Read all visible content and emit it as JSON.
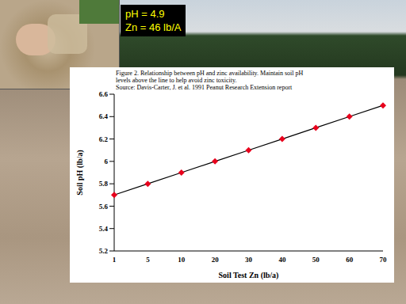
{
  "chart_data": {
    "type": "line",
    "title": "Figure 2. Relationship between pH and zinc availability.  Maintain soil pH\nlevels above the line to help avoid zinc toxicity.\nSource: Davis-Carter, J. et al. 1991 Peanut Research Extension report",
    "x_label": "Soil Test Zn (lb/a)",
    "y_label": "Soil pH (lb/a)",
    "categories": [
      "1",
      "5",
      "10",
      "20",
      "30",
      "40",
      "50",
      "60",
      "70"
    ],
    "values": [
      5.7,
      5.8,
      5.9,
      6.0,
      6.1,
      6.2,
      6.3,
      6.4,
      6.5
    ],
    "color": "#000000",
    "marker": "diamond",
    "marker_color": "#e8001c",
    "ylim": [
      5.2,
      6.6
    ],
    "yticks": [
      5.2,
      5.4,
      5.6,
      5.8,
      6,
      6.2,
      6.4,
      6.6
    ],
    "grid": false,
    "annotations": [
      "pH = 4.9",
      "Zn = 46 lb/A"
    ]
  }
}
